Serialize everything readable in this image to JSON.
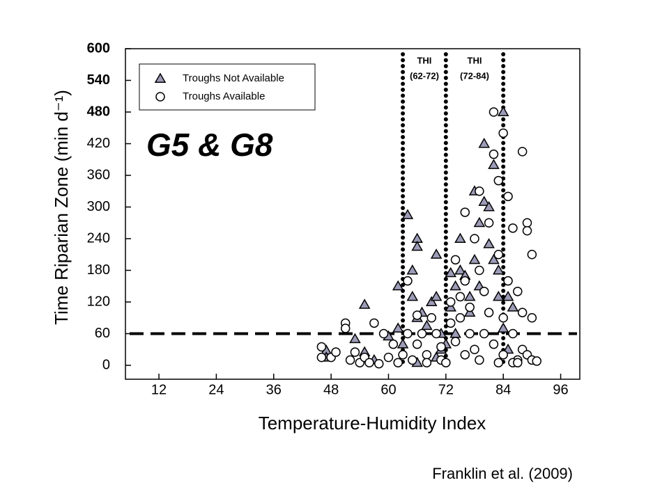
{
  "chart_data": {
    "type": "scatter",
    "title": "G5 & G8",
    "x_label": "Temperature-Humidity Index",
    "y_label": "Time Riparian Zone (min d⁻¹)",
    "credit": "Franklin et al. (2009)",
    "xlim": [
      5,
      100
    ],
    "ylim": [
      0,
      600
    ],
    "xticks": [
      12,
      24,
      36,
      48,
      60,
      72,
      84,
      96
    ],
    "yticks": [
      0,
      60,
      120,
      180,
      240,
      300,
      360,
      420,
      480,
      540,
      600
    ],
    "vlines": [
      63,
      72,
      84
    ],
    "hline": 60,
    "thi_labels": [
      [
        "THI",
        "(62-72)"
      ],
      [
        "THI",
        "(72-84)"
      ]
    ],
    "legend": "top-left",
    "series": [
      {
        "name": "Troughs Not Available",
        "marker": "triangle",
        "color": "#9c9cb8",
        "x": [
          47,
          47,
          53,
          55,
          55,
          57,
          62,
          62,
          63,
          64,
          65,
          66,
          66,
          65,
          66,
          67,
          68,
          69,
          70,
          70,
          71,
          71,
          72,
          73,
          73,
          74,
          74,
          75,
          75,
          76,
          77,
          77,
          78,
          78,
          79,
          79,
          80,
          80,
          81,
          81,
          82,
          82,
          83,
          83,
          84,
          84,
          85,
          86,
          85,
          70,
          66,
          60
        ],
        "values": [
          28,
          15,
          50,
          115,
          25,
          10,
          150,
          70,
          40,
          285,
          180,
          240,
          225,
          130,
          90,
          100,
          75,
          120,
          210,
          130,
          60,
          30,
          40,
          175,
          110,
          150,
          60,
          240,
          180,
          170,
          130,
          100,
          330,
          200,
          270,
          150,
          310,
          420,
          300,
          230,
          380,
          200,
          180,
          130,
          480,
          70,
          130,
          110,
          30,
          15,
          5,
          55
        ]
      },
      {
        "name": "Troughs Available",
        "marker": "circle",
        "color": "#ffffff",
        "x": [
          46,
          46,
          48,
          49,
          51,
          51,
          52,
          53,
          54,
          55,
          56,
          57,
          58,
          59,
          60,
          61,
          62,
          63,
          64,
          64,
          65,
          66,
          66,
          67,
          68,
          68,
          69,
          70,
          71,
          71,
          72,
          73,
          73,
          74,
          74,
          75,
          75,
          76,
          76,
          76,
          77,
          77,
          78,
          78,
          79,
          79,
          79,
          80,
          80,
          81,
          81,
          82,
          82,
          82,
          83,
          83,
          83,
          84,
          84,
          84,
          85,
          85,
          86,
          86,
          87,
          87,
          88,
          88,
          88,
          89,
          89,
          89,
          90,
          90,
          90,
          91,
          86,
          87
        ],
        "values": [
          35,
          15,
          15,
          25,
          80,
          70,
          10,
          25,
          5,
          15,
          5,
          80,
          3,
          60,
          15,
          40,
          5,
          20,
          160,
          60,
          10,
          95,
          40,
          60,
          20,
          5,
          90,
          60,
          35,
          10,
          5,
          80,
          120,
          45,
          200,
          90,
          130,
          290,
          160,
          20,
          60,
          110,
          240,
          30,
          330,
          180,
          10,
          140,
          60,
          270,
          100,
          480,
          400,
          40,
          350,
          210,
          5,
          440,
          90,
          20,
          320,
          160,
          260,
          60,
          140,
          10,
          405,
          100,
          30,
          270,
          255,
          20,
          210,
          90,
          10,
          8,
          5,
          5
        ]
      }
    ]
  }
}
